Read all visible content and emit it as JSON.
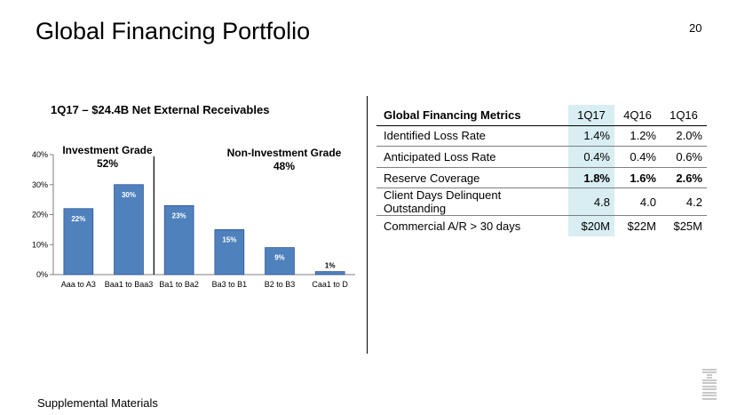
{
  "slide": {
    "title": "Global Financing Portfolio",
    "page_number": "20",
    "footer": "Supplemental Materials",
    "logo_text": "IBM"
  },
  "chart": {
    "title": "1Q17 – $24.4B Net External Receivables",
    "investment_grade": {
      "label": "Investment Grade",
      "value": "52%"
    },
    "non_investment_grade": {
      "label": "Non-Investment Grade",
      "value": "48%"
    }
  },
  "chart_data": {
    "type": "bar",
    "title": "1Q17 – $24.4B Net External Receivables",
    "categories": [
      "Aaa to A3",
      "Baa1 to Baa3",
      "Ba1 to Ba2",
      "Ba3 to B1",
      "B2 to B3",
      "Caa1 to D"
    ],
    "values": [
      22,
      30,
      23,
      15,
      9,
      1
    ],
    "data_labels": [
      "22%",
      "30%",
      "23%",
      "15%",
      "9%",
      "1%"
    ],
    "ylim": [
      0,
      40
    ],
    "yticks": [
      0,
      10,
      20,
      30,
      40
    ],
    "ytick_labels": [
      "0%",
      "10%",
      "20%",
      "30%",
      "40%"
    ],
    "xlabel": "",
    "ylabel": "",
    "grid": false,
    "bar_color": "#4f81bd"
  },
  "metrics_table": {
    "header": "Global Financing Metrics",
    "columns": [
      "1Q17",
      "4Q16",
      "1Q16"
    ],
    "rows": [
      {
        "label": "Identified Loss Rate",
        "values": [
          "1.4%",
          "1.2%",
          "2.0%"
        ]
      },
      {
        "label": "Anticipated Loss Rate",
        "values": [
          "0.4%",
          "0.4%",
          "0.6%"
        ]
      },
      {
        "label": "Reserve Coverage",
        "values": [
          "1.8%",
          "1.6%",
          "2.6%"
        ]
      },
      {
        "label": "Client Days Delinquent Outstanding",
        "values": [
          "4.8",
          "4.0",
          "4.2"
        ]
      },
      {
        "label": "Commercial A/R > 30 days",
        "values": [
          "$20M",
          "$22M",
          "$25M"
        ]
      }
    ],
    "highlight_color": "#d8eef3"
  }
}
